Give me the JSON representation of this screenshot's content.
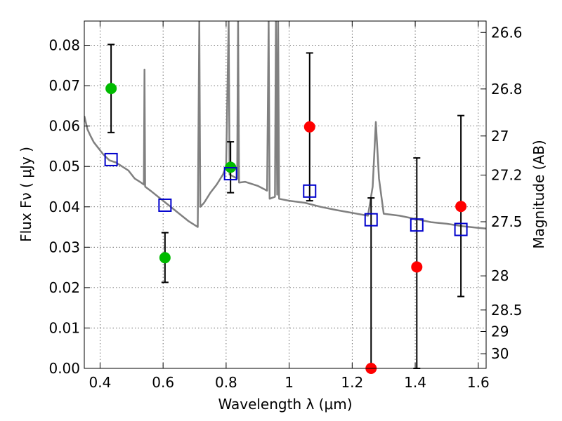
{
  "chart_data": {
    "type": "scatter",
    "title": "",
    "xlabel": "Wavelength  λ (μm)",
    "ylabel": "Flux  Fν  ( μJy )",
    "ylabel_right": "Magnitude (AB)",
    "xlim": [
      0.35,
      1.625
    ],
    "ylim": [
      0.0,
      0.086
    ],
    "grid": true,
    "x_ticks": [
      {
        "value": 0.4,
        "label": "0.4"
      },
      {
        "value": 0.6,
        "label": "0.6"
      },
      {
        "value": 0.8,
        "label": "0.8"
      },
      {
        "value": 1.0,
        "label": "1"
      },
      {
        "value": 1.2,
        "label": "1.2"
      },
      {
        "value": 1.4,
        "label": "1.4"
      },
      {
        "value": 1.6,
        "label": "1.6"
      }
    ],
    "y_ticks": [
      {
        "value": 0.0,
        "label": "0.00"
      },
      {
        "value": 0.01,
        "label": "0.01"
      },
      {
        "value": 0.02,
        "label": "0.02"
      },
      {
        "value": 0.03,
        "label": "0.03"
      },
      {
        "value": 0.04,
        "label": "0.04"
      },
      {
        "value": 0.05,
        "label": "0.05"
      },
      {
        "value": 0.06,
        "label": "0.06"
      },
      {
        "value": 0.07,
        "label": "0.07"
      },
      {
        "value": 0.08,
        "label": "0.08"
      }
    ],
    "mag_ticks": [
      {
        "value": 26.6,
        "label": "26.6"
      },
      {
        "value": 26.8,
        "label": "26.8"
      },
      {
        "value": 27.0,
        "label": "27"
      },
      {
        "value": 27.2,
        "label": "27.2"
      },
      {
        "value": 27.5,
        "label": "27.5"
      },
      {
        "value": 28.0,
        "label": "28"
      },
      {
        "value": 28.5,
        "label": "28.5"
      },
      {
        "value": 29.0,
        "label": "29"
      },
      {
        "value": 30.0,
        "label": "30"
      }
    ],
    "series": [
      {
        "color": "#00bb00",
        "marker": "circle",
        "points": [
          {
            "x": 0.435,
            "y": 0.0693,
            "err_low": 0.0584,
            "err_high": 0.0802
          },
          {
            "x": 0.606,
            "y": 0.0274,
            "err_low": 0.0213,
            "err_high": 0.0336
          },
          {
            "x": 0.814,
            "y": 0.0498,
            "err_low": 0.0435,
            "err_high": 0.0561
          }
        ]
      },
      {
        "color": "#ff0000",
        "marker": "circle",
        "points": [
          {
            "x": 1.065,
            "y": 0.0598,
            "err_low": 0.0415,
            "err_high": 0.0781
          },
          {
            "x": 1.26,
            "y": 0.0,
            "err_low": 0.0,
            "err_high": 0.0422
          },
          {
            "x": 1.405,
            "y": 0.0251,
            "err_low": 0.0,
            "err_high": 0.0521
          },
          {
            "x": 1.545,
            "y": 0.0401,
            "err_low": 0.0178,
            "err_high": 0.0626
          }
        ]
      },
      {
        "color": "#0000cc",
        "marker": "square",
        "points": [
          {
            "x": 0.435,
            "y": 0.0517
          },
          {
            "x": 0.606,
            "y": 0.0404
          },
          {
            "x": 0.814,
            "y": 0.0482
          },
          {
            "x": 1.065,
            "y": 0.0439
          },
          {
            "x": 1.26,
            "y": 0.0368
          },
          {
            "x": 1.405,
            "y": 0.0355
          },
          {
            "x": 1.545,
            "y": 0.0344
          }
        ]
      },
      {
        "type": "line",
        "color": "#808080",
        "points": [
          [
            0.35,
            0.0625
          ],
          [
            0.36,
            0.0592
          ],
          [
            0.37,
            0.0575
          ],
          [
            0.38,
            0.056
          ],
          [
            0.395,
            0.0545
          ],
          [
            0.41,
            0.053
          ],
          [
            0.43,
            0.0515
          ],
          [
            0.45,
            0.051
          ],
          [
            0.47,
            0.05
          ],
          [
            0.49,
            0.049
          ],
          [
            0.51,
            0.047
          ],
          [
            0.53,
            0.046
          ],
          [
            0.539,
            0.0455
          ],
          [
            0.541,
            0.074
          ],
          [
            0.543,
            0.045
          ],
          [
            0.56,
            0.044
          ],
          [
            0.6,
            0.0415
          ],
          [
            0.64,
            0.039
          ],
          [
            0.68,
            0.0365
          ],
          [
            0.71,
            0.035
          ],
          [
            0.715,
            0.086
          ],
          [
            0.718,
            0.04
          ],
          [
            0.73,
            0.041
          ],
          [
            0.75,
            0.0435
          ],
          [
            0.77,
            0.0455
          ],
          [
            0.79,
            0.048
          ],
          [
            0.8,
            0.05
          ],
          [
            0.808,
            0.086
          ],
          [
            0.811,
            0.048
          ],
          [
            0.835,
            0.047
          ],
          [
            0.838,
            0.086
          ],
          [
            0.841,
            0.046
          ],
          [
            0.86,
            0.0462
          ],
          [
            0.9,
            0.0452
          ],
          [
            0.93,
            0.044
          ],
          [
            0.935,
            0.086
          ],
          [
            0.938,
            0.042
          ],
          [
            0.955,
            0.0425
          ],
          [
            0.958,
            0.086
          ],
          [
            0.962,
            0.043
          ],
          [
            0.965,
            0.086
          ],
          [
            0.968,
            0.042
          ],
          [
            1.0,
            0.0415
          ],
          [
            1.05,
            0.041
          ],
          [
            1.1,
            0.04
          ],
          [
            1.15,
            0.0392
          ],
          [
            1.2,
            0.0385
          ],
          [
            1.25,
            0.0378
          ],
          [
            1.265,
            0.045
          ],
          [
            1.275,
            0.061
          ],
          [
            1.285,
            0.047
          ],
          [
            1.3,
            0.0383
          ],
          [
            1.35,
            0.0378
          ],
          [
            1.4,
            0.037
          ],
          [
            1.45,
            0.0362
          ],
          [
            1.5,
            0.0358
          ],
          [
            1.55,
            0.0352
          ],
          [
            1.6,
            0.0348
          ],
          [
            1.625,
            0.0346
          ]
        ]
      }
    ]
  }
}
